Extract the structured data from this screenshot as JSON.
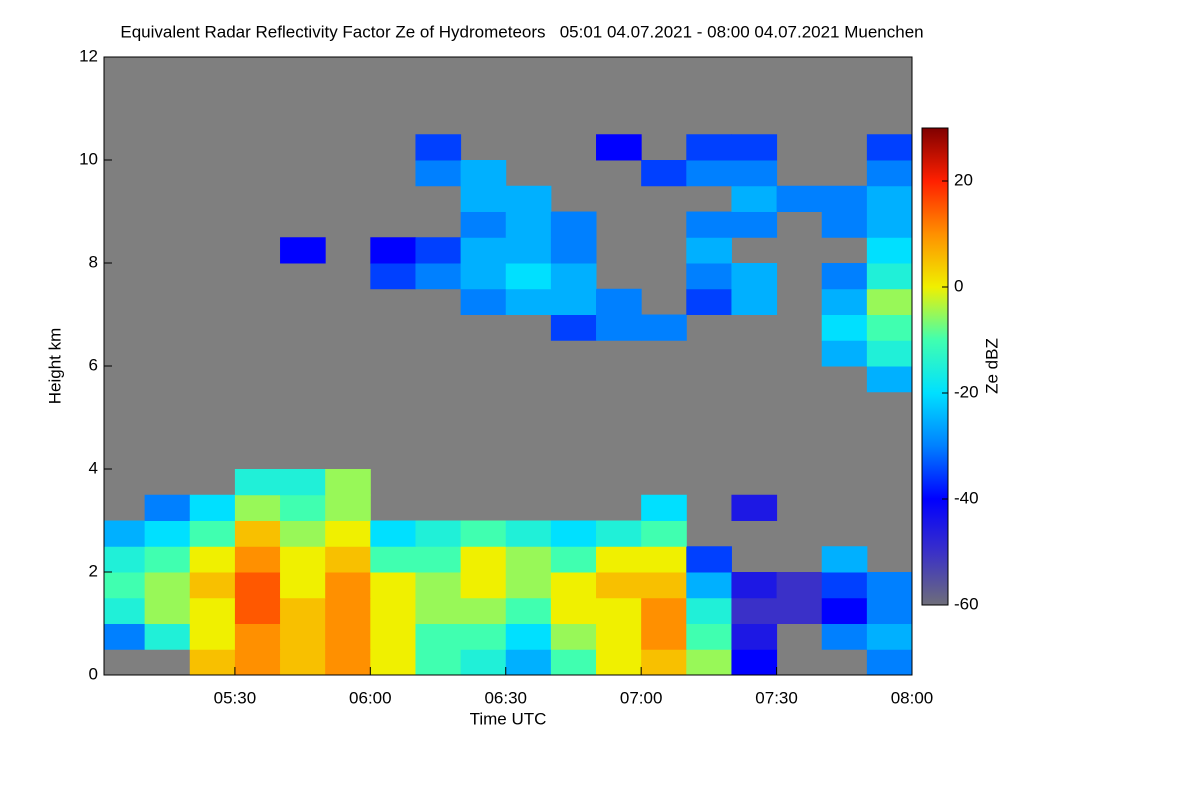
{
  "chart_data": {
    "type": "heatmap",
    "title": "Equivalent Radar Reflectivity Factor Ze of Hydrometeors   05:01 04.07.2021 - 08:00 04.07.2021 Muenchen",
    "x_label": "Time UTC",
    "y_label": "Height km",
    "colorbar_label": "Ze dBZ",
    "xlim": [
      301,
      480
    ],
    "xticks": [
      {
        "value": 330,
        "label": "05:30"
      },
      {
        "value": 360,
        "label": "06:00"
      },
      {
        "value": 390,
        "label": "06:30"
      },
      {
        "value": 420,
        "label": "07:00"
      },
      {
        "value": 450,
        "label": "07:30"
      },
      {
        "value": 480,
        "label": "08:00"
      }
    ],
    "ylim": [
      0,
      12
    ],
    "yticks": [
      0,
      2,
      4,
      6,
      8,
      10,
      12
    ],
    "zlim": [
      -60,
      30
    ],
    "zticks": [
      -60,
      -40,
      -20,
      0,
      20
    ],
    "colors": [
      "#6e6e7a",
      "#3a30c8",
      "#0000ff",
      "#0080ff",
      "#00e0ff",
      "#40ffb0",
      "#f0f000",
      "#ff9000",
      "#ff2000",
      "#800000"
    ],
    "nodata_color": "#7f7f7f",
    "x_bins": [
      301,
      310,
      320,
      330,
      340,
      350,
      360,
      370,
      380,
      390,
      400,
      410,
      420,
      430,
      440,
      450,
      460,
      470,
      480
    ],
    "y_bins": [
      0,
      0.5,
      1,
      1.5,
      2,
      2.5,
      3,
      3.5,
      4,
      4.5,
      5,
      5.5,
      6,
      6.5,
      7,
      7.5,
      8,
      8.5,
      9,
      9.5,
      10,
      10.5,
      11,
      11.5,
      12
    ],
    "z": [
      [
        null,
        null,
        5,
        10,
        5,
        10,
        0,
        -10,
        -15,
        -25,
        -10,
        0,
        5,
        -5,
        -40,
        null,
        null,
        -30
      ],
      [
        -30,
        -15,
        0,
        10,
        5,
        10,
        0,
        -10,
        -10,
        -20,
        -5,
        0,
        10,
        -10,
        -45,
        null,
        -30,
        -25
      ],
      [
        -15,
        -5,
        0,
        15,
        5,
        10,
        0,
        -5,
        -5,
        -10,
        0,
        0,
        10,
        -15,
        -50,
        -50,
        -40,
        -30
      ],
      [
        -10,
        -5,
        5,
        15,
        0,
        10,
        0,
        -5,
        0,
        -5,
        0,
        5,
        5,
        -25,
        -45,
        -50,
        -35,
        -30
      ],
      [
        -15,
        -10,
        0,
        10,
        0,
        5,
        -10,
        -10,
        0,
        -5,
        -10,
        0,
        0,
        -35,
        null,
        null,
        -25,
        null
      ],
      [
        -25,
        -20,
        -10,
        5,
        -5,
        0,
        -20,
        -15,
        -10,
        -15,
        -20,
        -15,
        -10,
        null,
        null,
        null,
        null,
        null
      ],
      [
        null,
        -30,
        -20,
        -5,
        -10,
        -5,
        null,
        null,
        null,
        null,
        null,
        null,
        -20,
        null,
        -45,
        null,
        null,
        null
      ],
      [
        null,
        null,
        null,
        -15,
        -15,
        -5,
        null,
        null,
        null,
        null,
        null,
        null,
        null,
        null,
        null,
        null,
        null,
        null
      ],
      [
        null,
        null,
        null,
        null,
        null,
        null,
        null,
        null,
        null,
        null,
        null,
        null,
        null,
        null,
        null,
        null,
        null,
        null
      ],
      [
        null,
        null,
        null,
        null,
        null,
        null,
        null,
        null,
        null,
        null,
        null,
        null,
        null,
        null,
        null,
        null,
        null,
        null
      ],
      [
        null,
        null,
        null,
        null,
        null,
        null,
        null,
        null,
        null,
        null,
        null,
        null,
        null,
        null,
        null,
        null,
        null,
        null
      ],
      [
        null,
        null,
        null,
        null,
        null,
        null,
        null,
        null,
        null,
        null,
        null,
        null,
        null,
        null,
        null,
        null,
        null,
        -25
      ],
      [
        null,
        null,
        null,
        null,
        null,
        null,
        null,
        null,
        null,
        null,
        null,
        null,
        null,
        null,
        null,
        null,
        -25,
        -15
      ],
      [
        null,
        null,
        null,
        null,
        null,
        null,
        null,
        null,
        null,
        null,
        -35,
        -30,
        -30,
        null,
        null,
        null,
        -20,
        -10
      ],
      [
        null,
        null,
        null,
        null,
        null,
        null,
        null,
        null,
        -30,
        -25,
        -25,
        -30,
        null,
        -35,
        -25,
        null,
        -25,
        -5
      ],
      [
        null,
        null,
        null,
        null,
        null,
        null,
        -35,
        -30,
        -25,
        -20,
        -25,
        null,
        null,
        -30,
        -25,
        null,
        -30,
        -15
      ],
      [
        null,
        null,
        null,
        null,
        -40,
        null,
        -40,
        -35,
        -25,
        -25,
        -30,
        null,
        null,
        -25,
        null,
        null,
        null,
        -20
      ],
      [
        null,
        null,
        null,
        null,
        null,
        null,
        null,
        null,
        -30,
        -25,
        -30,
        null,
        null,
        -30,
        -30,
        null,
        -30,
        -25
      ],
      [
        null,
        null,
        null,
        null,
        null,
        null,
        null,
        null,
        -25,
        -25,
        null,
        null,
        null,
        null,
        -25,
        -30,
        -30,
        -25
      ],
      [
        null,
        null,
        null,
        null,
        null,
        null,
        null,
        -30,
        -25,
        null,
        null,
        null,
        -35,
        -30,
        -30,
        null,
        null,
        -30
      ],
      [
        null,
        null,
        null,
        null,
        null,
        null,
        null,
        -35,
        null,
        null,
        null,
        -40,
        null,
        -35,
        -35,
        null,
        null,
        -35
      ],
      [
        null,
        null,
        null,
        null,
        null,
        null,
        null,
        null,
        null,
        null,
        null,
        null,
        null,
        null,
        null,
        null,
        null,
        null
      ],
      [
        null,
        null,
        null,
        null,
        null,
        null,
        null,
        null,
        null,
        null,
        null,
        null,
        null,
        null,
        null,
        null,
        null,
        null
      ],
      [
        null,
        null,
        null,
        null,
        null,
        null,
        null,
        null,
        null,
        null,
        null,
        null,
        null,
        null,
        null,
        null,
        null,
        null
      ]
    ]
  }
}
